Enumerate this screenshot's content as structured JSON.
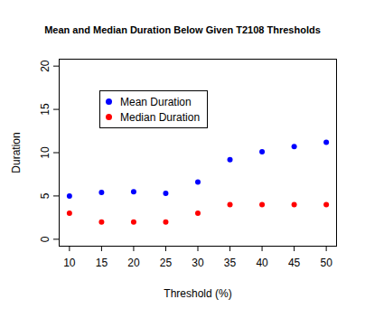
{
  "chart_data": {
    "type": "scatter",
    "title": "Mean and Median Duration Below Given T2108 Thresholds",
    "x_label": "Threshold (%)",
    "y_label": "Duration",
    "x": [
      10,
      15,
      20,
      25,
      30,
      35,
      40,
      45,
      50
    ],
    "series": [
      {
        "name": "Mean Duration",
        "color": "#0000ff",
        "marker": "circle",
        "values": [
          5.0,
          5.4,
          5.5,
          5.3,
          6.6,
          9.2,
          10.1,
          10.7,
          11.2
        ]
      },
      {
        "name": "Median Duration",
        "color": "#ff0000",
        "marker": "circle",
        "values": [
          3,
          2,
          2,
          2,
          3,
          4,
          4,
          4,
          4
        ]
      }
    ],
    "xlim": [
      8.4,
      51.6
    ],
    "ylim": [
      -0.8,
      20.8
    ],
    "xticks": [
      10,
      15,
      20,
      25,
      30,
      35,
      40,
      45,
      50
    ],
    "yticks": [
      0,
      5,
      10,
      15,
      20
    ],
    "legend": "top-left",
    "grid": false
  }
}
